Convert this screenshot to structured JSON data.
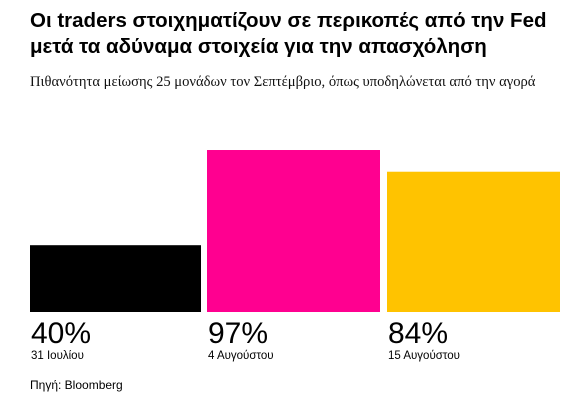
{
  "title": "Οι traders στοιχηματίζουν σε περικοπές από την Fed μετά τα αδύναμα στοιχεία για την απασχόληση",
  "subtitle": "Πιθανότητα μείωσης 25 μονάδων τον Σεπτέμβριο, όπως υποδηλώνεται από την αγορά",
  "source": "Πηγή: Bloomberg",
  "chart_data": {
    "type": "bar",
    "title": "Οι traders στοιχηματίζουν σε περικοπές από την Fed μετά τα αδύναμα στοιχεία για την απασχόληση",
    "subtitle": "Πιθανότητα μείωσης 25 μονάδων τον Σεπτέμβριο, όπως υποδηλώνεται από την αγορά",
    "categories": [
      "31 Ιουλίου",
      "4 Αυγούστου",
      "15 Αυγούστου"
    ],
    "values": [
      40,
      97,
      84
    ],
    "value_labels": [
      "40%",
      "97%",
      "84%"
    ],
    "colors": [
      "#000000",
      "#ff0090",
      "#ffc300"
    ],
    "ylim": [
      0,
      100
    ],
    "grid": false,
    "xlabel": "",
    "ylabel": ""
  }
}
